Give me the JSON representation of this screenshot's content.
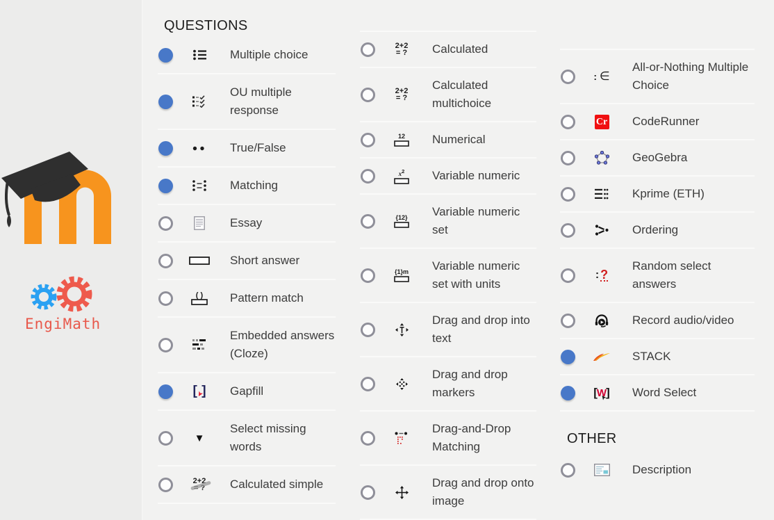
{
  "headers": {
    "questions": "QUESTIONS",
    "other": "OTHER"
  },
  "logos": {
    "moodle": {
      "letter": "m",
      "color": "#f7941e",
      "cap_color": "#2f2f2f"
    },
    "engimath": {
      "text": "EngiMath",
      "text_color": "#e8584b",
      "gear_blue": "#2ba1f2",
      "gear_red": "#ee5a4c"
    }
  },
  "colors": {
    "background": "#f2f2f1",
    "left_panel_background": "#ececeb",
    "row_separator": "#fafaf9",
    "radio_selected": "#4878c8",
    "radio_unselected_border": "#8f8f99",
    "label_text": "#3c3c3c",
    "coderunner_red": "#f01011",
    "gapfill_bracket_navy": "#23265c",
    "word_select_red": "#cf0032"
  },
  "columns": {
    "left": [
      {
        "label": "Multiple choice",
        "icon": "bullet-list-icon",
        "selected": true
      },
      {
        "label": "OU multiple response",
        "icon": "ou-multiple-response-icon",
        "selected": true
      },
      {
        "label": "True/False",
        "icon": "true-false-icon",
        "selected": true
      },
      {
        "label": "Matching",
        "icon": "matching-icon",
        "selected": true
      },
      {
        "label": "Essay",
        "icon": "essay-icon",
        "selected": false
      },
      {
        "label": "Short answer",
        "icon": "short-answer-icon",
        "selected": false
      },
      {
        "label": "Pattern match",
        "icon": "pattern-match-icon",
        "selected": false
      },
      {
        "label": "Embedded answers (Cloze)",
        "icon": "cloze-icon",
        "selected": false
      },
      {
        "label": "Gapfill",
        "icon": "gapfill-icon",
        "selected": true
      },
      {
        "label": "Select missing words",
        "icon": "select-missing-words-icon",
        "selected": false
      },
      {
        "label": "Calculated simple",
        "icon": "calculated-simple-icon",
        "selected": false
      }
    ],
    "middle": [
      {
        "label": "Calculated",
        "icon": "calculated-icon",
        "selected": false
      },
      {
        "label": "Calculated multichoice",
        "icon": "calculated-multichoice-icon",
        "selected": false
      },
      {
        "label": "Numerical",
        "icon": "numerical-icon",
        "selected": false
      },
      {
        "label": "Variable numeric",
        "icon": "variable-numeric-icon",
        "selected": false
      },
      {
        "label": "Variable numeric set",
        "icon": "variable-numeric-set-icon",
        "selected": false
      },
      {
        "label": "Variable numeric set with units",
        "icon": "variable-numeric-set-units-icon",
        "selected": false
      },
      {
        "label": "Drag and drop into text",
        "icon": "drag-drop-text-icon",
        "selected": false
      },
      {
        "label": "Drag and drop markers",
        "icon": "drag-drop-markers-icon",
        "selected": false
      },
      {
        "label": "Drag-and-Drop Matching",
        "icon": "drag-drop-matching-icon",
        "selected": false
      },
      {
        "label": "Drag and drop onto image",
        "icon": "drag-drop-image-icon",
        "selected": false
      }
    ],
    "right": [
      {
        "label": "All-or-Nothing Multiple Choice",
        "icon": "all-or-nothing-icon",
        "selected": false
      },
      {
        "label": "CodeRunner",
        "icon": "coderunner-icon",
        "selected": false
      },
      {
        "label": "GeoGebra",
        "icon": "geogebra-icon",
        "selected": false
      },
      {
        "label": "Kprime (ETH)",
        "icon": "kprime-icon",
        "selected": false
      },
      {
        "label": "Ordering",
        "icon": "ordering-icon",
        "selected": false
      },
      {
        "label": "Random select answers",
        "icon": "random-select-icon",
        "selected": false
      },
      {
        "label": "Record audio/video",
        "icon": "record-audio-video-icon",
        "selected": false
      },
      {
        "label": "STACK",
        "icon": "stack-icon",
        "selected": true
      },
      {
        "label": "Word Select",
        "icon": "word-select-icon",
        "selected": true
      }
    ],
    "other": [
      {
        "label": "Description",
        "icon": "description-icon",
        "selected": false
      }
    ]
  }
}
